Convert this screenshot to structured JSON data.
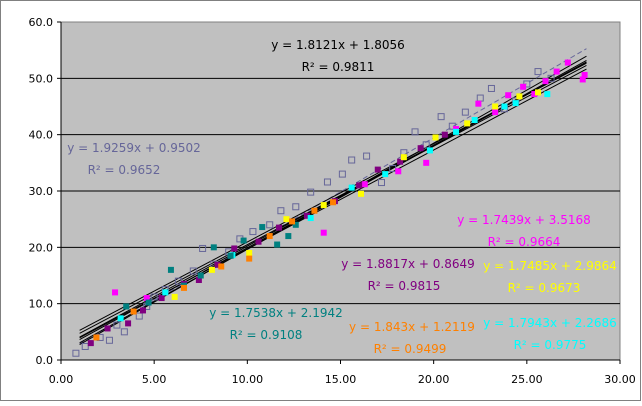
{
  "chart_data": {
    "type": "scatter",
    "title": "",
    "xlabel": "",
    "ylabel": "",
    "xlim": [
      0,
      30
    ],
    "ylim": [
      0,
      60
    ],
    "x_ticks": [
      "0.00",
      "5.00",
      "10.00",
      "15.00",
      "20.00",
      "25.00",
      "30.00"
    ],
    "y_ticks": [
      "0.0",
      "10.0",
      "20.0",
      "30.0",
      "40.0",
      "50.0",
      "60.0"
    ],
    "grid": true,
    "plot_background": "#c0c0c0",
    "series": [
      {
        "color": "#666699",
        "marker": "hollow-square",
        "trendline": {
          "slope": 1.9259,
          "intercept": 0.9502,
          "equation": "y = 1.9259x + 0.9502",
          "r2": "R² = 0.9652",
          "style": "dashed"
        },
        "points": [
          [
            0.8,
            1.2
          ],
          [
            1.3,
            2.4
          ],
          [
            2.1,
            4.0
          ],
          [
            2.6,
            3.5
          ],
          [
            3.0,
            6.2
          ],
          [
            3.4,
            5.0
          ],
          [
            4.2,
            7.8
          ],
          [
            4.6,
            9.5
          ],
          [
            5.0,
            11.2
          ],
          [
            5.6,
            12.5
          ],
          [
            6.3,
            14.0
          ],
          [
            7.1,
            15.8
          ],
          [
            7.6,
            19.8
          ],
          [
            8.2,
            17.0
          ],
          [
            9.0,
            19.2
          ],
          [
            9.6,
            21.5
          ],
          [
            10.3,
            22.8
          ],
          [
            11.2,
            24.0
          ],
          [
            11.8,
            26.5
          ],
          [
            12.6,
            27.2
          ],
          [
            13.4,
            29.8
          ],
          [
            14.3,
            31.6
          ],
          [
            15.1,
            33.0
          ],
          [
            15.6,
            35.5
          ],
          [
            16.4,
            36.2
          ],
          [
            17.2,
            31.5
          ],
          [
            17.8,
            34.0
          ],
          [
            18.4,
            36.8
          ],
          [
            19.0,
            40.5
          ],
          [
            19.6,
            38.2
          ],
          [
            20.4,
            43.2
          ],
          [
            21.0,
            41.5
          ],
          [
            21.7,
            44.0
          ],
          [
            22.5,
            46.5
          ],
          [
            23.1,
            48.2
          ],
          [
            23.8,
            44.6
          ],
          [
            24.4,
            46.0
          ],
          [
            25.0,
            49.0
          ],
          [
            25.6,
            51.2
          ],
          [
            26.3,
            50.0
          ]
        ]
      },
      {
        "color": "#ff00ff",
        "marker": "square",
        "trendline": {
          "slope": 1.7439,
          "intercept": 3.5168,
          "equation": "y = 1.7439x + 3.5168",
          "r2": "R² = 0.9664",
          "style": "solid"
        },
        "points": [
          [
            2.9,
            12.0
          ],
          [
            4.6,
            11.0
          ],
          [
            14.1,
            22.6
          ],
          [
            16.3,
            31.2
          ],
          [
            18.1,
            33.5
          ],
          [
            19.6,
            35.0
          ],
          [
            21.2,
            41.0
          ],
          [
            22.4,
            45.5
          ],
          [
            23.3,
            44.0
          ],
          [
            24.0,
            47.0
          ],
          [
            24.8,
            48.5
          ],
          [
            25.4,
            47.2
          ],
          [
            26.0,
            49.5
          ],
          [
            26.6,
            51.2
          ],
          [
            27.2,
            52.8
          ],
          [
            28.0,
            49.8
          ],
          [
            28.1,
            50.6
          ]
        ]
      },
      {
        "color": "#800080",
        "marker": "square",
        "trendline": {
          "slope": 1.8817,
          "intercept": 0.8649,
          "equation": "y = 1.8817x + 0.8649",
          "r2": "R² = 0.9815",
          "style": "solid"
        },
        "points": [
          [
            1.6,
            3.0
          ],
          [
            2.5,
            5.6
          ],
          [
            3.6,
            6.5
          ],
          [
            4.4,
            8.8
          ],
          [
            5.4,
            11.0
          ],
          [
            6.6,
            13.5
          ],
          [
            7.4,
            14.2
          ],
          [
            8.4,
            16.9
          ],
          [
            9.3,
            19.8
          ],
          [
            10.6,
            21.0
          ],
          [
            11.7,
            23.5
          ],
          [
            13.2,
            25.6
          ],
          [
            14.7,
            28.2
          ],
          [
            16.0,
            31.0
          ],
          [
            17.0,
            33.8
          ],
          [
            18.2,
            35.2
          ],
          [
            19.3,
            37.6
          ],
          [
            20.6,
            40.0
          ]
        ]
      },
      {
        "color": "#ffff00",
        "marker": "square",
        "trendline": {
          "slope": 1.7485,
          "intercept": 2.9864,
          "equation": "y = 1.7485x + 2.9864",
          "r2": "R² = 0.9673",
          "style": "solid"
        },
        "points": [
          [
            6.1,
            11.2
          ],
          [
            8.1,
            16.0
          ],
          [
            10.1,
            19.0
          ],
          [
            12.1,
            25.0
          ],
          [
            14.1,
            27.5
          ],
          [
            16.1,
            29.5
          ],
          [
            18.4,
            36.0
          ],
          [
            20.1,
            39.5
          ],
          [
            21.8,
            42.0
          ],
          [
            23.3,
            45.0
          ],
          [
            24.6,
            46.8
          ],
          [
            25.6,
            47.5
          ]
        ]
      },
      {
        "color": "#00ffff",
        "marker": "square",
        "trendline": {
          "slope": 1.7943,
          "intercept": 2.2686,
          "equation": "y = 1.7943x + 2.2686",
          "r2": "R² = 0.9775",
          "style": "solid"
        },
        "points": [
          [
            3.2,
            7.4
          ],
          [
            5.6,
            12.0
          ],
          [
            9.2,
            18.6
          ],
          [
            13.4,
            25.2
          ],
          [
            15.6,
            30.6
          ],
          [
            17.4,
            33.0
          ],
          [
            19.8,
            37.2
          ],
          [
            21.2,
            40.5
          ],
          [
            22.2,
            42.6
          ],
          [
            23.8,
            45.0
          ],
          [
            24.4,
            45.6
          ],
          [
            26.1,
            47.2
          ]
        ]
      },
      {
        "color": "#008080",
        "marker": "square",
        "trendline": {
          "slope": 1.7538,
          "intercept": 2.1942,
          "equation": "y = 1.7538x + 2.1942",
          "r2": "R² = 0.9108",
          "style": "solid"
        },
        "points": [
          [
            3.5,
            9.5
          ],
          [
            4.7,
            10.2
          ],
          [
            5.9,
            16.0
          ],
          [
            6.6,
            13.2
          ],
          [
            7.5,
            15.0
          ],
          [
            8.2,
            20.0
          ],
          [
            9.1,
            18.5
          ],
          [
            9.8,
            21.2
          ],
          [
            10.8,
            23.6
          ],
          [
            11.6,
            20.5
          ],
          [
            12.2,
            22.0
          ],
          [
            12.6,
            24.0
          ]
        ]
      },
      {
        "color": "#ff8000",
        "marker": "square",
        "trendline": {
          "slope": 1.843,
          "intercept": 1.2119,
          "equation": "y = 1.843x + 1.2119",
          "r2": "R² = 0.9499",
          "style": "solid"
        },
        "points": [
          [
            1.9,
            4.0
          ],
          [
            3.9,
            8.6
          ],
          [
            6.6,
            12.8
          ],
          [
            8.6,
            16.6
          ],
          [
            10.1,
            18.0
          ],
          [
            11.2,
            22.0
          ],
          [
            12.4,
            24.6
          ],
          [
            13.6,
            26.5
          ],
          [
            14.6,
            28.0
          ]
        ]
      },
      {
        "color": "#000000",
        "marker": "none",
        "trendline": {
          "slope": 1.8121,
          "intercept": 1.8056,
          "equation": "y = 1.8121x + 1.8056",
          "r2": "R² = 0.9811",
          "style": "solid"
        },
        "points": []
      }
    ]
  }
}
